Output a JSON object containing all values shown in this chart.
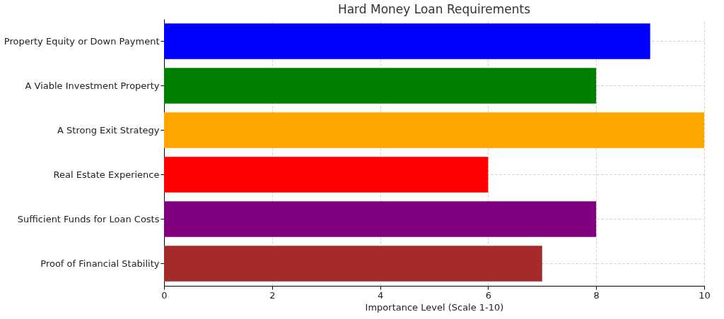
{
  "chart_data": {
    "type": "bar",
    "orientation": "horizontal",
    "title": "Hard Money Loan Requirements",
    "xlabel": "Importance Level (Scale 1-10)",
    "categories": [
      "Property Equity or Down Payment",
      "A Viable Investment Property",
      "A Strong Exit Strategy",
      "Real Estate Experience",
      "Sufficient Funds for Loan Costs",
      "Proof of Financial Stability"
    ],
    "values": [
      9,
      8,
      10,
      6,
      8,
      7
    ],
    "colors": [
      "#0000ff",
      "#008000",
      "#ffa500",
      "#ff0000",
      "#800080",
      "#a52a2a"
    ],
    "xlim": [
      0,
      10
    ],
    "xticks": [
      0,
      2,
      4,
      6,
      8,
      10
    ],
    "grid": true
  }
}
